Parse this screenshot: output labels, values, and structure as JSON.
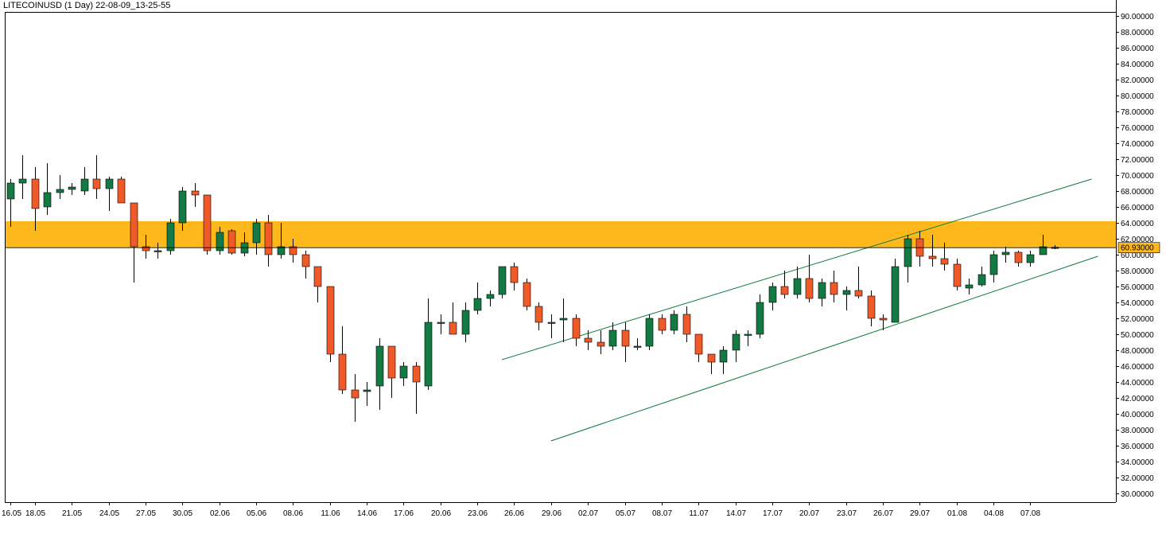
{
  "chart_data": {
    "type": "candlestick",
    "title": "LITECOINUSD (1 Day) 22-08-09_13-25-55",
    "ylim": [
      29.0,
      91.0
    ],
    "y_ticks": [
      "90.00000",
      "88.00000",
      "86.00000",
      "84.00000",
      "82.00000",
      "80.00000",
      "78.00000",
      "76.00000",
      "74.00000",
      "72.00000",
      "70.00000",
      "68.00000",
      "66.00000",
      "64.00000",
      "62.00000",
      "60.00000",
      "58.00000",
      "56.00000",
      "54.00000",
      "52.00000",
      "50.00000",
      "48.00000",
      "46.00000",
      "44.00000",
      "42.00000",
      "40.00000",
      "38.00000",
      "36.00000",
      "34.00000",
      "32.00000",
      "30.00000"
    ],
    "x_ticks": [
      {
        "label": "16.05",
        "index": 0
      },
      {
        "label": "18.05",
        "index": 2
      },
      {
        "label": "21.05",
        "index": 5
      },
      {
        "label": "24.05",
        "index": 8
      },
      {
        "label": "27.05",
        "index": 11
      },
      {
        "label": "30.05",
        "index": 14
      },
      {
        "label": "02.06",
        "index": 17
      },
      {
        "label": "05.06",
        "index": 20
      },
      {
        "label": "08.06",
        "index": 23
      },
      {
        "label": "11.06",
        "index": 26
      },
      {
        "label": "14.06",
        "index": 29
      },
      {
        "label": "17.06",
        "index": 32
      },
      {
        "label": "20.06",
        "index": 35
      },
      {
        "label": "23.06",
        "index": 38
      },
      {
        "label": "26.06",
        "index": 41
      },
      {
        "label": "29.06",
        "index": 44
      },
      {
        "label": "02.07",
        "index": 47
      },
      {
        "label": "05.07",
        "index": 50
      },
      {
        "label": "08.07",
        "index": 53
      },
      {
        "label": "11.07",
        "index": 56
      },
      {
        "label": "14.07",
        "index": 59
      },
      {
        "label": "17.07",
        "index": 62
      },
      {
        "label": "20.07",
        "index": 65
      },
      {
        "label": "23.07",
        "index": 68
      },
      {
        "label": "26.07",
        "index": 71
      },
      {
        "label": "29.07",
        "index": 74
      },
      {
        "label": "01.08",
        "index": 77
      },
      {
        "label": "04.08",
        "index": 80
      },
      {
        "label": "07.08",
        "index": 83
      }
    ],
    "candles": [
      {
        "o": 67.0,
        "h": 69.5,
        "l": 63.5,
        "c": 69.0
      },
      {
        "o": 69.0,
        "h": 72.5,
        "l": 67.0,
        "c": 69.5
      },
      {
        "o": 69.5,
        "h": 71.0,
        "l": 63.0,
        "c": 65.8
      },
      {
        "o": 66.0,
        "h": 71.5,
        "l": 65.0,
        "c": 67.8
      },
      {
        "o": 67.8,
        "h": 70.0,
        "l": 67.0,
        "c": 68.2
      },
      {
        "o": 68.2,
        "h": 69.0,
        "l": 67.5,
        "c": 68.5
      },
      {
        "o": 68.0,
        "h": 71.0,
        "l": 67.5,
        "c": 69.5
      },
      {
        "o": 69.5,
        "h": 72.5,
        "l": 67.0,
        "c": 68.3
      },
      {
        "o": 68.3,
        "h": 69.8,
        "l": 65.5,
        "c": 69.5
      },
      {
        "o": 69.5,
        "h": 69.8,
        "l": 66.5,
        "c": 66.5
      },
      {
        "o": 66.5,
        "h": 66.5,
        "l": 56.5,
        "c": 61.0
      },
      {
        "o": 61.0,
        "h": 62.5,
        "l": 59.5,
        "c": 60.5
      },
      {
        "o": 60.5,
        "h": 61.5,
        "l": 59.5,
        "c": 60.5
      },
      {
        "o": 60.5,
        "h": 64.5,
        "l": 60.0,
        "c": 64.0
      },
      {
        "o": 64.0,
        "h": 68.5,
        "l": 63.0,
        "c": 68.0
      },
      {
        "o": 68.0,
        "h": 69.0,
        "l": 66.0,
        "c": 67.5
      },
      {
        "o": 67.5,
        "h": 67.5,
        "l": 60.0,
        "c": 60.5
      },
      {
        "o": 60.5,
        "h": 63.5,
        "l": 60.0,
        "c": 62.8
      },
      {
        "o": 63.0,
        "h": 63.2,
        "l": 60.0,
        "c": 60.2
      },
      {
        "o": 60.2,
        "h": 62.8,
        "l": 59.8,
        "c": 61.5
      },
      {
        "o": 61.5,
        "h": 64.5,
        "l": 60.0,
        "c": 64.0
      },
      {
        "o": 64.0,
        "h": 65.0,
        "l": 58.5,
        "c": 60.0
      },
      {
        "o": 60.0,
        "h": 64.0,
        "l": 59.5,
        "c": 61.0
      },
      {
        "o": 61.0,
        "h": 62.0,
        "l": 59.0,
        "c": 60.0
      },
      {
        "o": 60.0,
        "h": 60.5,
        "l": 57.0,
        "c": 58.5
      },
      {
        "o": 58.5,
        "h": 58.5,
        "l": 54.0,
        "c": 56.0
      },
      {
        "o": 56.0,
        "h": 56.0,
        "l": 46.5,
        "c": 47.5
      },
      {
        "o": 47.5,
        "h": 51.0,
        "l": 42.5,
        "c": 43.0
      },
      {
        "o": 43.0,
        "h": 45.0,
        "l": 39.0,
        "c": 42.0
      },
      {
        "o": 42.8,
        "h": 44.0,
        "l": 41.0,
        "c": 43.0
      },
      {
        "o": 43.5,
        "h": 49.5,
        "l": 40.5,
        "c": 48.5
      },
      {
        "o": 48.5,
        "h": 48.5,
        "l": 42.0,
        "c": 44.5
      },
      {
        "o": 44.5,
        "h": 46.5,
        "l": 43.5,
        "c": 46.0
      },
      {
        "o": 46.0,
        "h": 46.5,
        "l": 40.0,
        "c": 44.0
      },
      {
        "o": 43.5,
        "h": 54.5,
        "l": 43.0,
        "c": 51.5
      },
      {
        "o": 51.5,
        "h": 52.5,
        "l": 50.0,
        "c": 51.5
      },
      {
        "o": 51.5,
        "h": 54.0,
        "l": 50.0,
        "c": 50.0
      },
      {
        "o": 50.0,
        "h": 54.0,
        "l": 49.0,
        "c": 53.0
      },
      {
        "o": 53.0,
        "h": 56.5,
        "l": 52.5,
        "c": 54.5
      },
      {
        "o": 54.5,
        "h": 55.5,
        "l": 53.5,
        "c": 55.0
      },
      {
        "o": 55.0,
        "h": 58.5,
        "l": 54.5,
        "c": 58.5
      },
      {
        "o": 58.5,
        "h": 59.0,
        "l": 55.5,
        "c": 56.5
      },
      {
        "o": 56.5,
        "h": 57.0,
        "l": 53.0,
        "c": 53.5
      },
      {
        "o": 53.5,
        "h": 54.0,
        "l": 50.5,
        "c": 51.5
      },
      {
        "o": 51.5,
        "h": 52.5,
        "l": 49.5,
        "c": 51.5
      },
      {
        "o": 51.8,
        "h": 54.5,
        "l": 49.0,
        "c": 52.0
      },
      {
        "o": 52.0,
        "h": 52.5,
        "l": 48.5,
        "c": 49.5
      },
      {
        "o": 49.5,
        "h": 50.5,
        "l": 48.0,
        "c": 49.0
      },
      {
        "o": 49.0,
        "h": 50.5,
        "l": 47.5,
        "c": 48.5
      },
      {
        "o": 48.5,
        "h": 51.5,
        "l": 48.0,
        "c": 50.5
      },
      {
        "o": 50.5,
        "h": 51.5,
        "l": 46.5,
        "c": 48.5
      },
      {
        "o": 48.5,
        "h": 49.5,
        "l": 48.0,
        "c": 48.5
      },
      {
        "o": 48.5,
        "h": 52.5,
        "l": 48.0,
        "c": 52.0
      },
      {
        "o": 52.0,
        "h": 52.5,
        "l": 50.0,
        "c": 50.5
      },
      {
        "o": 50.5,
        "h": 53.0,
        "l": 50.0,
        "c": 52.5
      },
      {
        "o": 52.5,
        "h": 53.5,
        "l": 49.0,
        "c": 50.0
      },
      {
        "o": 50.0,
        "h": 50.0,
        "l": 46.5,
        "c": 47.5
      },
      {
        "o": 47.5,
        "h": 47.5,
        "l": 45.0,
        "c": 46.5
      },
      {
        "o": 46.5,
        "h": 48.5,
        "l": 45.0,
        "c": 48.0
      },
      {
        "o": 48.0,
        "h": 50.5,
        "l": 46.5,
        "c": 50.0
      },
      {
        "o": 50.0,
        "h": 50.5,
        "l": 48.5,
        "c": 50.0
      },
      {
        "o": 50.0,
        "h": 55.0,
        "l": 49.5,
        "c": 54.0
      },
      {
        "o": 54.0,
        "h": 56.5,
        "l": 53.0,
        "c": 56.0
      },
      {
        "o": 56.0,
        "h": 58.0,
        "l": 54.5,
        "c": 55.0
      },
      {
        "o": 55.0,
        "h": 58.5,
        "l": 54.5,
        "c": 57.0
      },
      {
        "o": 57.0,
        "h": 60.0,
        "l": 54.0,
        "c": 54.5
      },
      {
        "o": 54.5,
        "h": 57.0,
        "l": 53.5,
        "c": 56.5
      },
      {
        "o": 56.5,
        "h": 58.0,
        "l": 54.0,
        "c": 55.0
      },
      {
        "o": 55.0,
        "h": 56.0,
        "l": 53.0,
        "c": 55.5
      },
      {
        "o": 55.5,
        "h": 58.5,
        "l": 54.5,
        "c": 54.8
      },
      {
        "o": 54.8,
        "h": 55.5,
        "l": 51.0,
        "c": 52.0
      },
      {
        "o": 52.0,
        "h": 52.5,
        "l": 50.5,
        "c": 51.8
      },
      {
        "o": 51.5,
        "h": 59.5,
        "l": 51.5,
        "c": 58.5
      },
      {
        "o": 58.5,
        "h": 62.5,
        "l": 56.5,
        "c": 62.0
      },
      {
        "o": 62.0,
        "h": 63.0,
        "l": 58.5,
        "c": 59.8
      },
      {
        "o": 59.8,
        "h": 62.5,
        "l": 58.5,
        "c": 59.5
      },
      {
        "o": 59.5,
        "h": 61.5,
        "l": 58.0,
        "c": 58.8
      },
      {
        "o": 58.8,
        "h": 59.5,
        "l": 55.5,
        "c": 56.0
      },
      {
        "o": 55.8,
        "h": 57.0,
        "l": 55.0,
        "c": 56.2
      },
      {
        "o": 56.2,
        "h": 58.5,
        "l": 56.0,
        "c": 57.5
      },
      {
        "o": 57.5,
        "h": 60.5,
        "l": 56.5,
        "c": 60.0
      },
      {
        "o": 60.0,
        "h": 61.0,
        "l": 59.0,
        "c": 60.3
      },
      {
        "o": 60.3,
        "h": 60.5,
        "l": 58.5,
        "c": 59.0
      },
      {
        "o": 59.0,
        "h": 60.5,
        "l": 58.5,
        "c": 60.0
      },
      {
        "o": 60.0,
        "h": 62.5,
        "l": 60.0,
        "c": 61.0
      },
      {
        "o": 60.9,
        "h": 61.2,
        "l": 60.7,
        "c": 60.93
      }
    ],
    "zone": {
      "low": 60.93,
      "high": 64.2,
      "color": "#ffb81c"
    },
    "current_price": 60.93,
    "current_price_label": "60.93000",
    "trendlines": [
      {
        "x1": 40.0,
        "y1": 46.8,
        "x2": 88.0,
        "y2": 69.5
      },
      {
        "x1": 44.0,
        "y1": 36.6,
        "x2": 88.5,
        "y2": 59.8
      }
    ],
    "colors": {
      "bull": "#137a43",
      "bear": "#f05a28",
      "trendline": "#0a7a3a",
      "zone": "#ffb81c",
      "current_price_bg": "#ffb81c"
    }
  }
}
